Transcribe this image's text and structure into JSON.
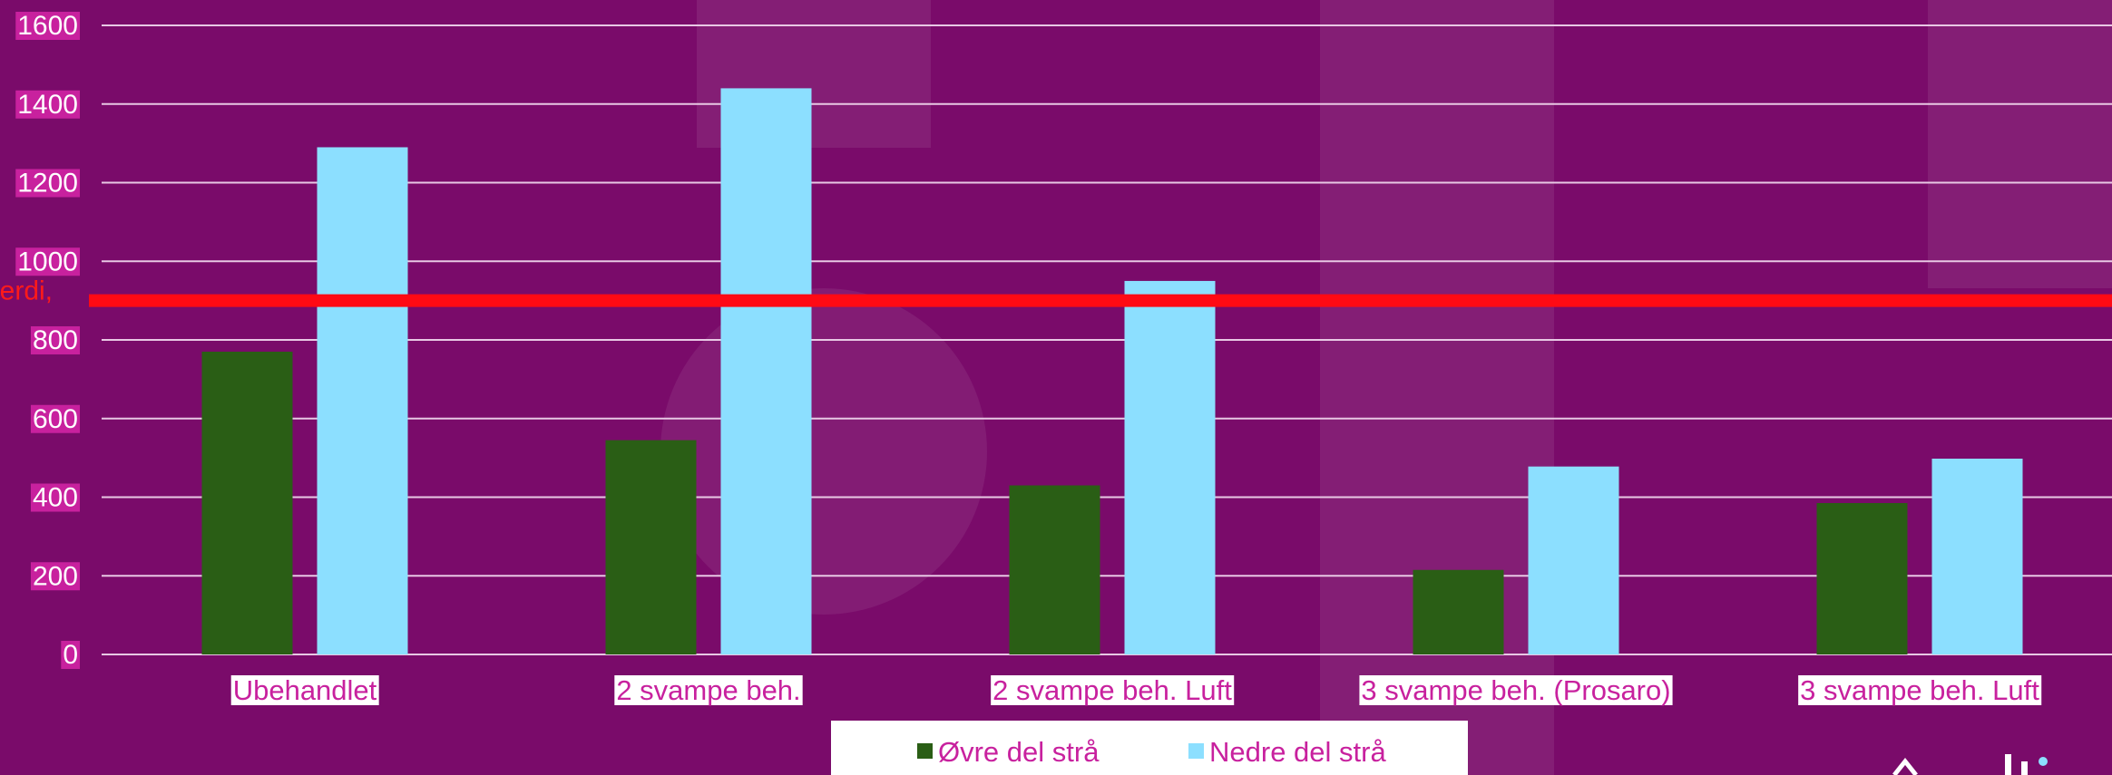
{
  "chart_data": {
    "type": "bar",
    "categories": [
      "Ubehandlet",
      "2 svampe beh.",
      "2 svampe beh. Luft",
      "3 svampe beh. (Prosaro)",
      "3 svampe beh. Luft"
    ],
    "series": [
      {
        "name": "Øvre del strå",
        "values": [
          770,
          545,
          430,
          215,
          385
        ],
        "color": "#2a5e15"
      },
      {
        "name": "Nedre del strå",
        "values": [
          1290,
          1440,
          950,
          478,
          498
        ],
        "color": "#8cdfff"
      }
    ],
    "ylim": [
      0,
      1600
    ],
    "yticks": [
      0,
      200,
      400,
      600,
      800,
      1000,
      1200,
      1400,
      1600
    ],
    "grid": true,
    "legend_position": "bottom",
    "reference_line": {
      "value": 900,
      "label": "erdi,",
      "color": "#ff0a14"
    },
    "colors": {
      "background": "#7a0b6a",
      "gridline": "#e8c8e4",
      "tick_label_bg": "#ffffff",
      "category_label_text": "#c8219e"
    }
  }
}
